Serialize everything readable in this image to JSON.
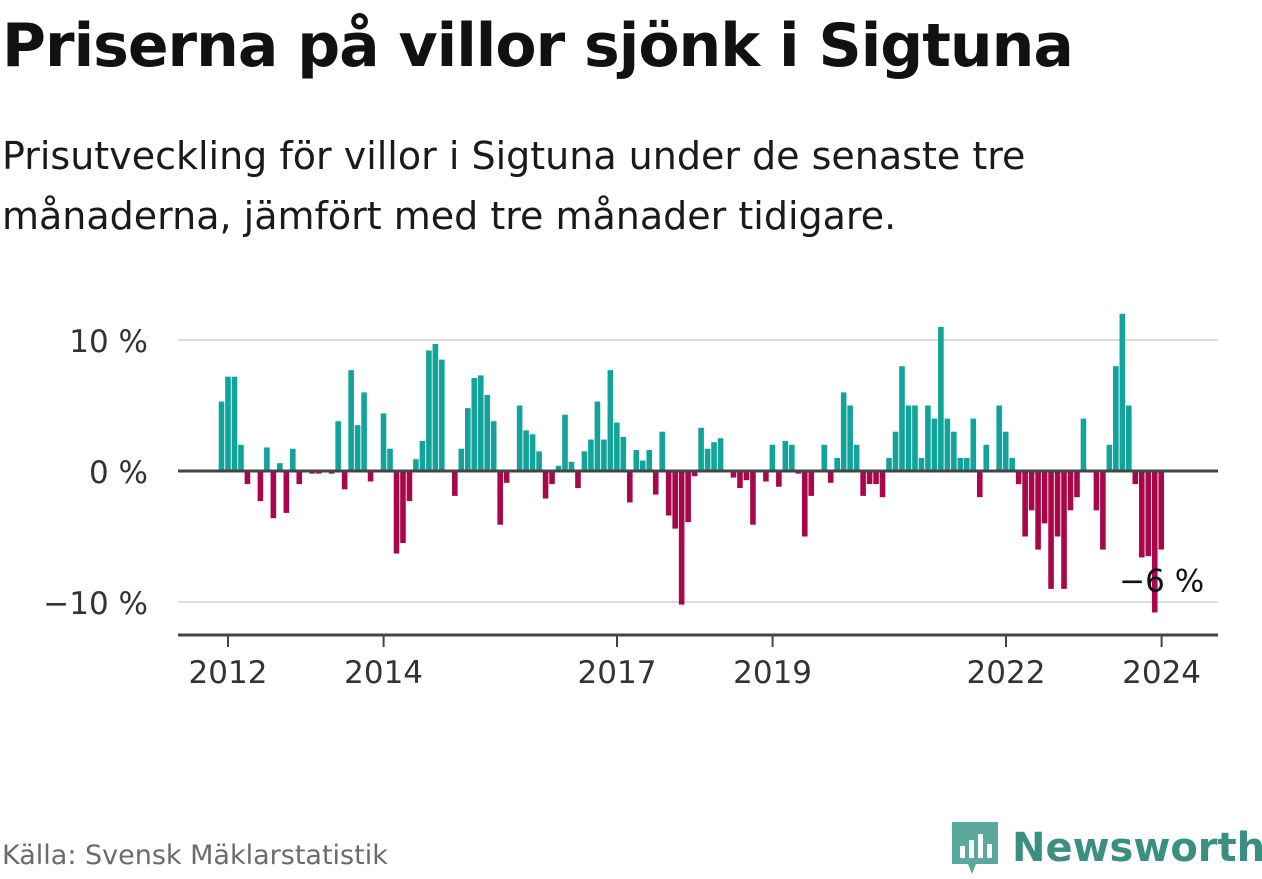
{
  "header": {
    "title": "Priserna på villor sjönk i Sigtuna",
    "subtitle": "Prisutveckling för villor i Sigtuna under de senaste tre månaderna, jämfört med tre månader tidigare."
  },
  "footer": {
    "source": "Källa: Svensk Mäklarstatistik",
    "brand": "Newsworthy"
  },
  "colors": {
    "positive": "#12a39a",
    "negative": "#a8084a",
    "grid": "#dddddd",
    "axis": "#444444"
  },
  "chart_data": {
    "type": "bar",
    "title": "Priserna på villor sjönk i Sigtuna",
    "xlabel": "",
    "ylabel": "",
    "ylim": [
      -13,
      13
    ],
    "y_ticks": [
      {
        "value": 10,
        "label": "10 %"
      },
      {
        "value": 0,
        "label": "0 %"
      },
      {
        "value": -10,
        "label": "−10 %"
      }
    ],
    "x_ticks": [
      {
        "value": 2012,
        "label": "2012"
      },
      {
        "value": 2014,
        "label": "2014"
      },
      {
        "value": 2017,
        "label": "2017"
      },
      {
        "value": 2019,
        "label": "2019"
      },
      {
        "value": 2022,
        "label": "2022"
      },
      {
        "value": 2024,
        "label": "2024"
      }
    ],
    "x_start": 2011.9167,
    "x_step": 0.0833,
    "x_end": 2024.75,
    "annotation": {
      "label": "−6 %",
      "value": -6
    },
    "values": [
      5.3,
      7.2,
      7.2,
      2.0,
      -1.0,
      0.0,
      -2.3,
      1.8,
      -3.6,
      0.6,
      -3.2,
      1.7,
      -1.0,
      0.0,
      -0.2,
      -0.2,
      0.0,
      -0.2,
      3.8,
      -1.4,
      7.7,
      3.5,
      6.0,
      -0.8,
      0.0,
      4.4,
      1.7,
      -6.3,
      -5.5,
      -2.3,
      0.9,
      2.3,
      9.2,
      9.7,
      8.5,
      0.0,
      -1.9,
      1.7,
      4.8,
      7.1,
      7.3,
      5.8,
      3.8,
      -4.1,
      -0.9,
      0.0,
      5.0,
      3.1,
      2.8,
      1.5,
      -2.1,
      -1.0,
      0.4,
      4.3,
      0.7,
      -1.3,
      1.5,
      2.4,
      5.3,
      2.4,
      7.7,
      3.7,
      2.6,
      -2.4,
      1.6,
      0.8,
      1.6,
      -1.8,
      3.0,
      -3.4,
      -4.4,
      -10.2,
      -3.9,
      -0.4,
      3.3,
      1.7,
      2.2,
      2.5,
      0.0,
      -0.5,
      -1.3,
      -0.7,
      -4.1,
      0.0,
      -0.8,
      2.0,
      -1.2,
      2.3,
      2.0,
      -0.2,
      -5.0,
      -1.9,
      0.0,
      2.0,
      -0.9,
      1.0,
      6.0,
      5.0,
      2.0,
      -1.9,
      -1.0,
      -1.0,
      -2.0,
      1.0,
      3.0,
      8.0,
      5.0,
      5.0,
      1.0,
      5.0,
      4.0,
      11.0,
      4.0,
      3.0,
      1.0,
      1.0,
      4.0,
      -2.0,
      2.0,
      0.0,
      5.0,
      3.0,
      1.0,
      -1.0,
      -5.0,
      -3.0,
      -6.0,
      -4.0,
      -9.0,
      -5.0,
      -9.0,
      -3.0,
      -2.0,
      4.0,
      0.0,
      -3.0,
      -6.0,
      2.0,
      8.0,
      12.0,
      5.0,
      -1.0,
      -6.6,
      -6.5,
      -10.8,
      -6.0
    ]
  }
}
